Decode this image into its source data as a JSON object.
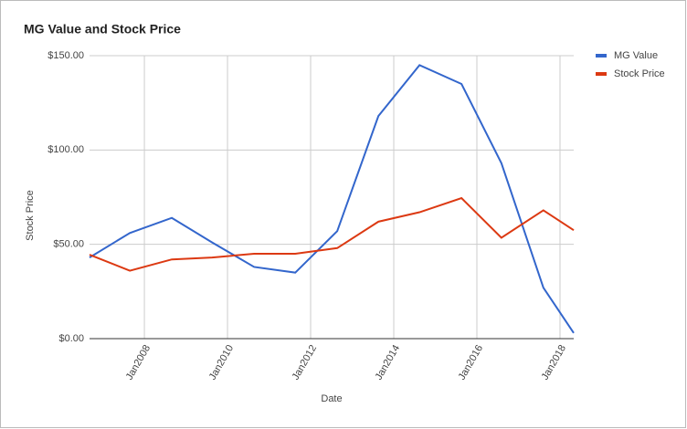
{
  "chart_data": {
    "type": "line",
    "title": "MG Value and Stock Price",
    "x_label": "Date",
    "y_label": "Stock Price",
    "x": [
      2006.68,
      2007.65,
      2008.66,
      2009.63,
      2010.64,
      2011.63,
      2012.64,
      2013.63,
      2014.62,
      2015.63,
      2016.59,
      2017.6,
      2018.33
    ],
    "series": [
      {
        "name": "MG Value",
        "color": "#3366cc",
        "values": [
          43,
          56,
          64,
          51,
          38,
          35,
          57,
          118,
          145,
          135,
          93,
          27,
          3
        ]
      },
      {
        "name": "Stock Price",
        "color": "#dc3912",
        "values": [
          44.5,
          36,
          42,
          43,
          45,
          45,
          48,
          62,
          67,
          74.5,
          53.5,
          68,
          57.5
        ]
      }
    ],
    "xlim": [
      2006.68,
      2018.33
    ],
    "xticks": [
      {
        "value": 2008,
        "label": "Jan2008"
      },
      {
        "value": 2010,
        "label": "Jan2010"
      },
      {
        "value": 2012,
        "label": "Jan2012"
      },
      {
        "value": 2014,
        "label": "Jan2014"
      },
      {
        "value": 2016,
        "label": "Jan2016"
      },
      {
        "value": 2018,
        "label": "Jan2018"
      }
    ],
    "ylim": [
      0,
      150
    ],
    "yticks": [
      {
        "value": 0,
        "label": "$0.00"
      },
      {
        "value": 50,
        "label": "$50.00"
      },
      {
        "value": 100,
        "label": "$100.00"
      },
      {
        "value": 150,
        "label": "$150.00"
      }
    ],
    "grid": true,
    "legend": "right"
  }
}
